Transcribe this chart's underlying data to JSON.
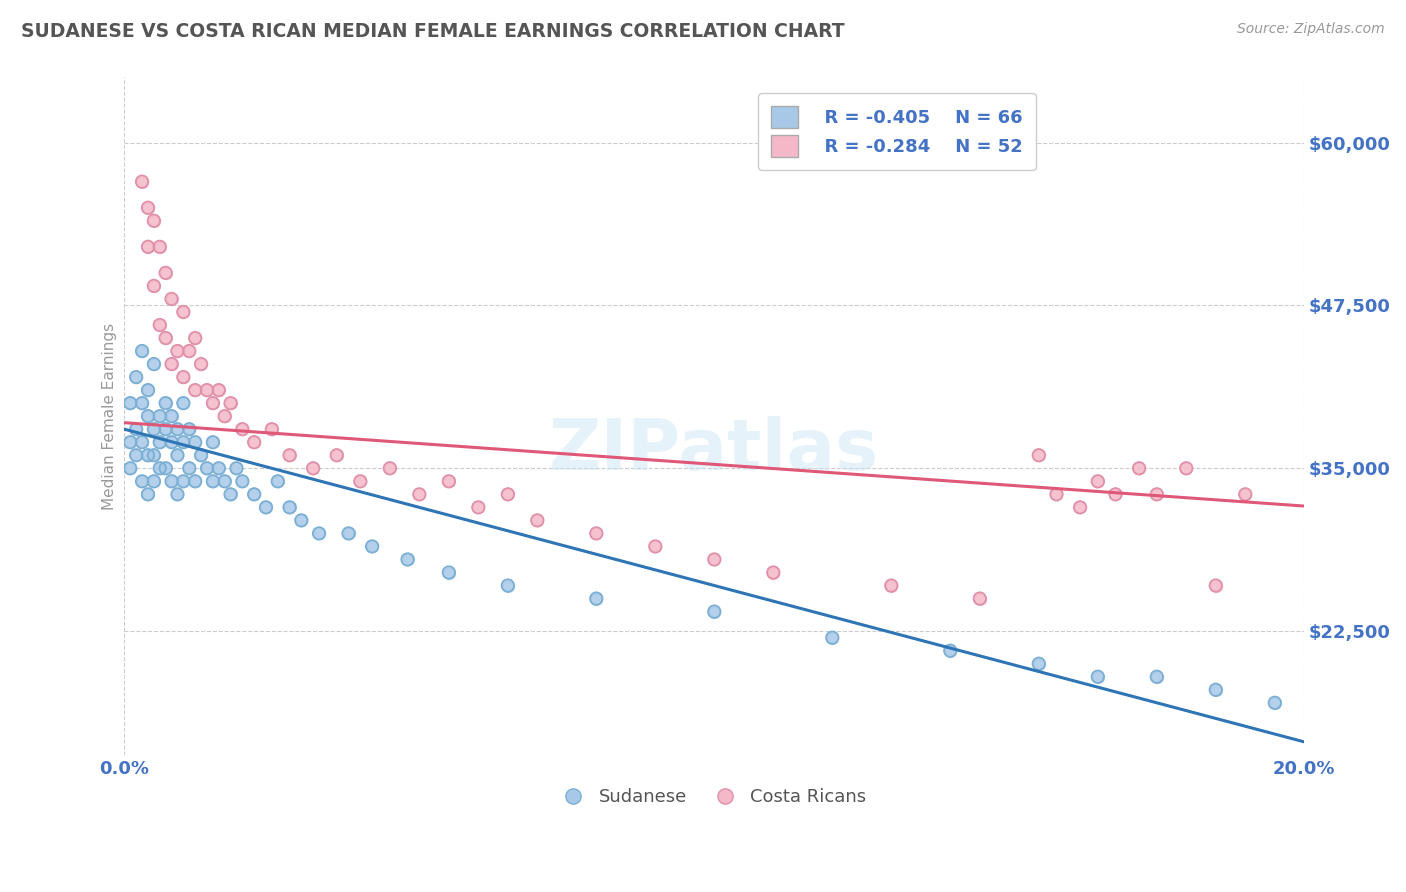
{
  "title": "SUDANESE VS COSTA RICAN MEDIAN FEMALE EARNINGS CORRELATION CHART",
  "source": "Source: ZipAtlas.com",
  "ylabel": "Median Female Earnings",
  "xlim": [
    0.0,
    0.2
  ],
  "ylim": [
    13000,
    65000
  ],
  "yticks": [
    22500,
    35000,
    47500,
    60000
  ],
  "xticks": [
    0.0,
    0.2
  ],
  "xtick_labels": [
    "0.0%",
    "20.0%"
  ],
  "ytick_labels": [
    "$22,500",
    "$35,000",
    "$47,500",
    "$60,000"
  ],
  "background_color": "#ffffff",
  "grid_color": "#cccccc",
  "axis_color": "#4472c4",
  "blue_scatter_color": "#a8c8e8",
  "pink_scatter_color": "#f4b8c8",
  "blue_line_color": "#2e75b6",
  "pink_line_color": "#e05878",
  "legend_R_blue": "R = -0.405",
  "legend_N_blue": "N = 66",
  "legend_R_pink": "R = -0.284",
  "legend_N_pink": "N = 52",
  "blue_intercept": 38000,
  "blue_slope": -120000,
  "pink_intercept": 38500,
  "pink_slope": -32000,
  "sudanese_x": [
    0.001,
    0.001,
    0.001,
    0.002,
    0.002,
    0.002,
    0.003,
    0.003,
    0.003,
    0.003,
    0.004,
    0.004,
    0.004,
    0.004,
    0.005,
    0.005,
    0.005,
    0.005,
    0.006,
    0.006,
    0.006,
    0.007,
    0.007,
    0.007,
    0.008,
    0.008,
    0.008,
    0.009,
    0.009,
    0.009,
    0.01,
    0.01,
    0.01,
    0.011,
    0.011,
    0.012,
    0.012,
    0.013,
    0.014,
    0.015,
    0.015,
    0.016,
    0.017,
    0.018,
    0.019,
    0.02,
    0.022,
    0.024,
    0.026,
    0.028,
    0.03,
    0.033,
    0.038,
    0.042,
    0.048,
    0.055,
    0.065,
    0.08,
    0.1,
    0.12,
    0.14,
    0.155,
    0.165,
    0.175,
    0.185,
    0.195
  ],
  "sudanese_y": [
    40000,
    37000,
    35000,
    42000,
    38000,
    36000,
    44000,
    40000,
    37000,
    34000,
    41000,
    39000,
    36000,
    33000,
    43000,
    38000,
    36000,
    34000,
    39000,
    37000,
    35000,
    40000,
    38000,
    35000,
    39000,
    37000,
    34000,
    38000,
    36000,
    33000,
    40000,
    37000,
    34000,
    38000,
    35000,
    37000,
    34000,
    36000,
    35000,
    37000,
    34000,
    35000,
    34000,
    33000,
    35000,
    34000,
    33000,
    32000,
    34000,
    32000,
    31000,
    30000,
    30000,
    29000,
    28000,
    27000,
    26000,
    25000,
    24000,
    22000,
    21000,
    20000,
    19000,
    19000,
    18000,
    17000
  ],
  "costarican_x": [
    0.003,
    0.004,
    0.004,
    0.005,
    0.005,
    0.006,
    0.006,
    0.007,
    0.007,
    0.008,
    0.008,
    0.009,
    0.01,
    0.01,
    0.011,
    0.012,
    0.012,
    0.013,
    0.014,
    0.015,
    0.016,
    0.017,
    0.018,
    0.02,
    0.022,
    0.025,
    0.028,
    0.032,
    0.036,
    0.04,
    0.045,
    0.05,
    0.055,
    0.06,
    0.065,
    0.07,
    0.08,
    0.09,
    0.1,
    0.11,
    0.13,
    0.145,
    0.155,
    0.158,
    0.162,
    0.165,
    0.168,
    0.172,
    0.175,
    0.18,
    0.185,
    0.19
  ],
  "costarican_y": [
    57000,
    55000,
    52000,
    54000,
    49000,
    52000,
    46000,
    50000,
    45000,
    48000,
    43000,
    44000,
    47000,
    42000,
    44000,
    45000,
    41000,
    43000,
    41000,
    40000,
    41000,
    39000,
    40000,
    38000,
    37000,
    38000,
    36000,
    35000,
    36000,
    34000,
    35000,
    33000,
    34000,
    32000,
    33000,
    31000,
    30000,
    29000,
    28000,
    27000,
    26000,
    25000,
    36000,
    33000,
    32000,
    34000,
    33000,
    35000,
    33000,
    35000,
    26000,
    33000
  ]
}
